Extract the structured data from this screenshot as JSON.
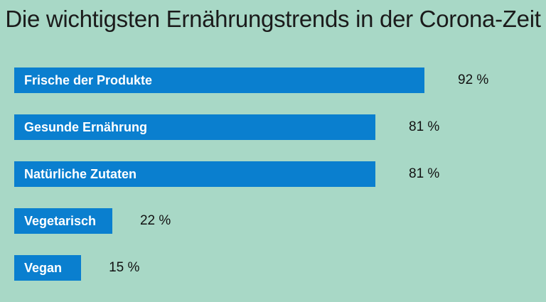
{
  "chart_data": {
    "type": "bar",
    "orientation": "horizontal",
    "title": "Die wichtigsten Ernährungstrends in der Corona-Zeit",
    "categories": [
      "Frische der Produkte",
      "Gesunde Ernährung",
      "Natürliche Zutaten",
      "Vegetarisch",
      "Vegan"
    ],
    "values": [
      92,
      81,
      81,
      22,
      15
    ],
    "value_labels": [
      "92 %",
      "81 %",
      "81 %",
      "22 %",
      "15 %"
    ],
    "unit": "%",
    "xlim": [
      0,
      100
    ],
    "grid": false,
    "legend": "none",
    "colors": {
      "background": "#a8d8c6",
      "bar": "#0a7fcf",
      "bar_label": "#ffffff",
      "text": "#1b1b1b"
    }
  }
}
